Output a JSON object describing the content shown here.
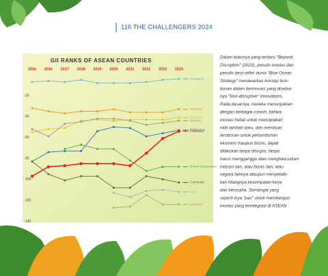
{
  "header": {
    "title": "116 THE CHALLENGERS 2024"
  },
  "chart_data": {
    "type": "line",
    "title": "GII RANKS OF  ASEAN COUNTRIES",
    "categories": [
      "2016",
      "2016",
      "2017",
      "2018",
      "2019",
      "2020",
      "2021",
      "2022",
      "2023",
      "2024"
    ],
    "ylim": [
      0,
      140
    ],
    "y_reversed": true,
    "yticks": [
      20,
      40,
      60,
      80,
      100,
      120,
      140
    ],
    "series": [
      {
        "name": "Singapore",
        "color": "#6fb4de",
        "values": [
          7,
          6,
          7,
          5,
          8,
          8,
          8,
          7,
          5,
          4
        ]
      },
      {
        "name": "Malaysia",
        "color": "#f0961e",
        "values": [
          32,
          35,
          37,
          35,
          35,
          33,
          36,
          36,
          36,
          33
        ]
      },
      {
        "name": "Thailand",
        "color": "#e8c51a",
        "values": [
          55,
          52,
          51,
          44,
          43,
          44,
          43,
          43,
          43,
          41
        ]
      },
      {
        "name": "Vietnam",
        "color": "#9a9a9a",
        "values": [
          52,
          59,
          47,
          45,
          42,
          42,
          44,
          48,
          46,
          44
        ]
      },
      {
        "name": "Philippines",
        "color": "#2a6fc4",
        "values": [
          83,
          74,
          73,
          73,
          54,
          50,
          51,
          59,
          56,
          53
        ]
      },
      {
        "name": "Indonesia",
        "color": "#e0242a",
        "values": [
          97,
          88,
          87,
          85,
          85,
          85,
          87,
          75,
          61,
          54
        ]
      },
      {
        "name": "Brunei Darussalam",
        "color": "#5aab3c",
        "values": [
          null,
          null,
          71,
          67,
          71,
          71,
          82,
          92,
          88,
          88
        ]
      },
      {
        "name": "Cambodia",
        "color": "#6b6340",
        "values": [
          83,
          95,
          101,
          97,
          97,
          108,
          108,
          97,
          100,
          103
        ]
      },
      {
        "name": "Laos",
        "color": "#b9a9bf",
        "values": [
          null,
          null,
          null,
          null,
          null,
          113,
          117,
          111,
          110,
          112
        ]
      },
      {
        "name": "Myanmar",
        "color": "#c9a46e",
        "values": [
          null,
          null,
          null,
          null,
          null,
          127,
          126,
          115,
          124,
          124
        ]
      }
    ]
  },
  "article": {
    "lines": [
      "Dalam bukunya yang terbaru \"Beyond",
      "Disruption\" (2023), penulis inovasi dan",
      "penulis best-seller dunia \"Blue Ocean",
      "Strategy\" menawarkan konsep tere-",
      "bosan dalam berinovasi yang disebut-",
      "nya \"Non-disruptive\" Innovations.",
      "Pada dasarnya, mereka menunjukkan",
      "dengan berbagai contoh, bahwa",
      "inovasi hebat untuk menciptakan",
      "nilai tambah baru, dan membuat",
      "terobosan untuk pertumbuhan",
      "ekonomi maupun bisnis, dapat",
      "dilakukan tanpa disrupsi, tanpa",
      "harus mengganggu atau menghancurkan",
      "industri lain, atau bisnis lain, atau",
      "negara lainnya ataupun menyebab-",
      "kan hilangnya kesempatan kerja",
      "dan berusaha. Semangat yang",
      "seperti inya \"pas\" untuk membangun",
      "inovasi yang terintegrasi di ASEAN"
    ]
  }
}
